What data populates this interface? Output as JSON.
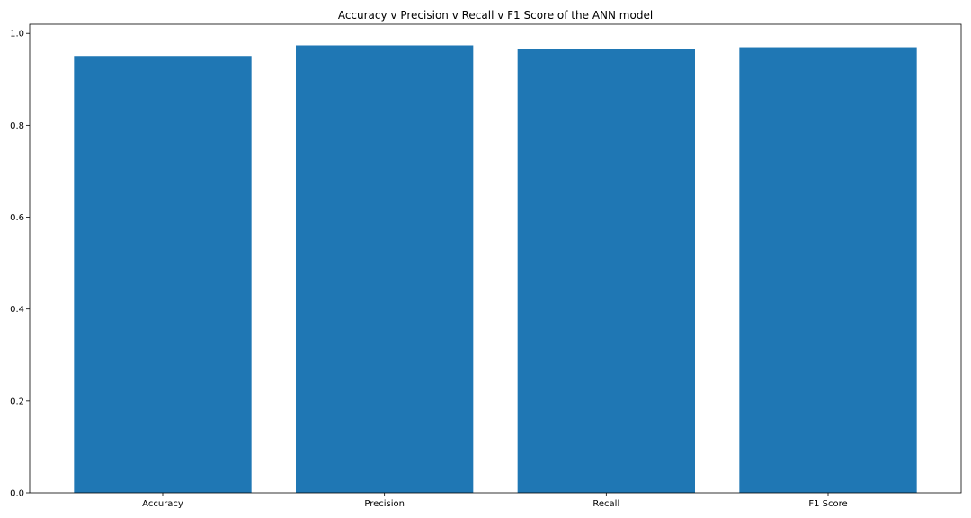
{
  "chart_data": {
    "type": "bar",
    "title": "Accuracy v Precision v Recall v F1 Score of the ANN model",
    "xlabel": "",
    "ylabel": "",
    "categories": [
      "Accuracy",
      "Precision",
      "Recall",
      "F1 Score"
    ],
    "values": [
      0.951,
      0.974,
      0.966,
      0.97
    ],
    "ylim": [
      0,
      1.02
    ],
    "yticks": [
      0.0,
      0.2,
      0.4,
      0.6,
      0.8,
      1.0
    ],
    "ytick_labels": [
      "0.0",
      "0.2",
      "0.4",
      "0.6",
      "0.8",
      "1.0"
    ],
    "bar_color": "#1f77b4",
    "grid": false,
    "legend": "none"
  }
}
